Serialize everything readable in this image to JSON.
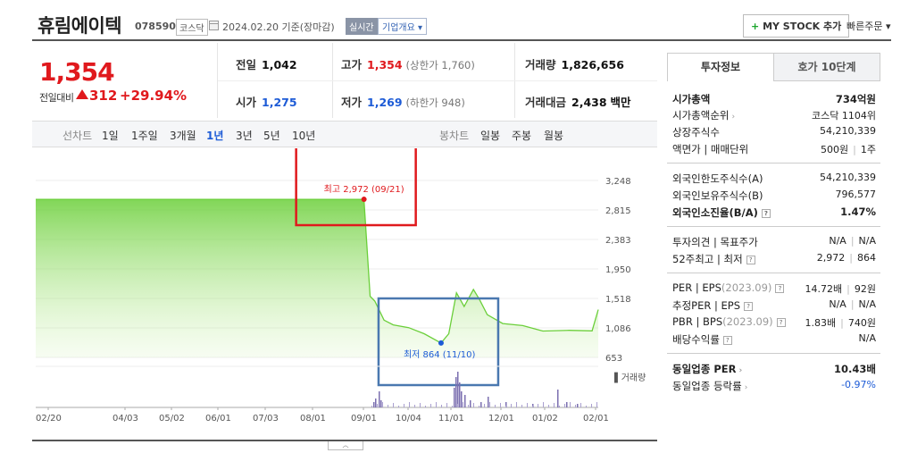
{
  "header": {
    "company": "휴림에이텍",
    "code": "078590",
    "market": "코스닥",
    "date": "2024.02.20 기준(장마감)",
    "realtime": "실시간",
    "overview": "기업개요 ▾",
    "mystock_plus": "+",
    "mystock": "MY STOCK 추가",
    "quick_order": "빠른주문 ▾"
  },
  "price": {
    "current": "1,354",
    "change_label": "전일대비",
    "change_value": "312",
    "change_pct": "+29.94%",
    "up_color": "#e0191d"
  },
  "stats": {
    "prev_close_label": "전일",
    "prev_close": "1,042",
    "high_label": "고가",
    "high": "1,354",
    "high_sub": "(상한가 1,760)",
    "volume_label": "거래량",
    "volume": "1,826,656",
    "open_label": "시가",
    "open": "1,275",
    "low_label": "저가",
    "low": "1,269",
    "low_sub": "(하한가 948)",
    "amount_label": "거래대금",
    "amount": "2,438",
    "amount_unit": "백만"
  },
  "period_bar": {
    "line_label": "선차트",
    "periods": [
      "1일",
      "1주일",
      "3개월",
      "1년",
      "3년",
      "5년",
      "10년"
    ],
    "active": "1년",
    "candle_label": "봉차트",
    "candles": [
      "일봉",
      "주봉",
      "월봉"
    ]
  },
  "chart_data": {
    "type": "area",
    "x_ticks": [
      "02/20",
      "04/03",
      "05/02",
      "06/01",
      "07/03",
      "08/01",
      "09/01",
      "10/04",
      "11/01",
      "12/01",
      "01/02",
      "02/01"
    ],
    "y_ticks": [
      "3,248",
      "2,815",
      "2,383",
      "1,950",
      "1,518",
      "1,086",
      "653"
    ],
    "ylim": [
      653,
      3248
    ],
    "high_label": "최고 2,972 (09/21)",
    "low_label": "최저 864 (11/10)",
    "volume_label": "거래량",
    "price_color": "#6bcf3a",
    "fill_color": "#c9f0a8",
    "high_marker_color": "#e0191d",
    "low_marker_color": "#1d5bd6",
    "annotation_colors": [
      "#e0191d",
      "#4a78b0"
    ],
    "price_series": [
      {
        "date": "02/20",
        "price": 2972
      },
      {
        "date": "09/21",
        "price": 2972
      },
      {
        "date": "09/25",
        "price": 1550
      },
      {
        "date": "09/28",
        "price": 1480
      },
      {
        "date": "10/04",
        "price": 1200
      },
      {
        "date": "10/10",
        "price": 1130
      },
      {
        "date": "10/20",
        "price": 1090
      },
      {
        "date": "10/30",
        "price": 1000
      },
      {
        "date": "11/10",
        "price": 864
      },
      {
        "date": "11/15",
        "price": 1000
      },
      {
        "date": "11/20",
        "price": 1600
      },
      {
        "date": "11/25",
        "price": 1400
      },
      {
        "date": "12/01",
        "price": 1650
      },
      {
        "date": "12/05",
        "price": 1500
      },
      {
        "date": "12/10",
        "price": 1280
      },
      {
        "date": "12/20",
        "price": 1150
      },
      {
        "date": "01/02",
        "price": 1120
      },
      {
        "date": "01/15",
        "price": 1040
      },
      {
        "date": "02/01",
        "price": 1050
      },
      {
        "date": "02/16",
        "price": 1042
      },
      {
        "date": "02/20",
        "price": 1354
      }
    ]
  },
  "panel": {
    "tabs": [
      "투자정보",
      "호가 10단계"
    ],
    "market_cap_label": "시가총액",
    "market_cap": "734억원",
    "rank_label": "시가총액순위",
    "rank": "코스닥 1104위",
    "shares_label": "상장주식수",
    "shares": "54,210,339",
    "par_label": "액면가 | 매매단위",
    "par": "500원",
    "unit": "1주",
    "foreign_limit_label": "외국인한도주식수(A)",
    "foreign_limit": "54,210,339",
    "foreign_hold_label": "외국인보유주식수(B)",
    "foreign_hold": "796,577",
    "foreign_ratio_label": "외국인소진율(B/A)",
    "foreign_ratio": "1.47%",
    "opinion_label": "투자의견 | 목표주가",
    "opinion": "N/A",
    "target": "N/A",
    "w52_label": "52주최고 | 최저",
    "w52_high": "2,972",
    "w52_low": "864",
    "per_label": "PER | EPS",
    "per_year": "(2023.09)",
    "per": "14.72배",
    "eps": "92원",
    "est_label": "추정PER | EPS",
    "est_per": "N/A",
    "est_eps": "N/A",
    "pbr_label": "PBR | BPS",
    "pbr_year": "(2023.09)",
    "pbr": "1.83배",
    "bps": "740원",
    "div_label": "배당수익률",
    "div": "N/A",
    "ind_per_label": "동일업종 PER",
    "ind_per": "10.43배",
    "ind_rate_label": "동일업종 등락률",
    "ind_rate": "-0.97%"
  }
}
